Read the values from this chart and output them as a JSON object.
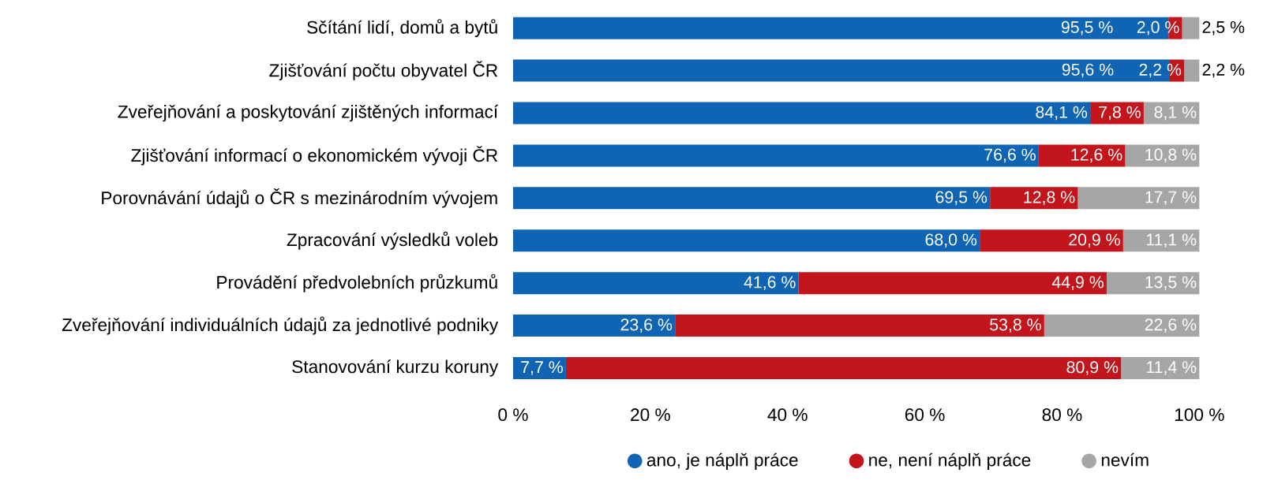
{
  "chart_data": {
    "type": "bar",
    "orientation": "horizontal",
    "stacked": true,
    "categories": [
      "Sčítání lidí, domů a bytů",
      "Zjišťování počtu obyvatel ČR",
      "Zveřejňování a poskytování zjištěných informací",
      "Zjišťování informací o ekonomickém vývoji ČR",
      "Porovnávání údajů o ČR s mezinárodním vývojem",
      "Zpracování výsledků voleb",
      "Provádění předvolebních průzkumů",
      "Zveřejňování individuálních údajů za jednotlivé podniky",
      "Stanovování kurzu koruny"
    ],
    "series": [
      {
        "name": "ano, je náplň práce",
        "color": "#0f64b4",
        "values": [
          95.5,
          95.6,
          84.1,
          76.6,
          69.5,
          68.0,
          41.6,
          23.6,
          7.7
        ],
        "value_labels": [
          "95,5 %",
          "95,6 %",
          "84,1 %",
          "76,6 %",
          "69,5 %",
          "68,0 %",
          "41,6 %",
          "23,6 %",
          "7,7 %"
        ]
      },
      {
        "name": "ne, není náplň práce",
        "color": "#c3161c",
        "values": [
          2.0,
          2.2,
          7.8,
          12.6,
          12.8,
          20.9,
          44.9,
          53.8,
          80.9
        ],
        "value_labels": [
          "2,0 %",
          "2,2 %",
          "7,8 %",
          "12,6 %",
          "12,8 %",
          "20,9 %",
          "44,9 %",
          "53,8 %",
          "80,9 %"
        ]
      },
      {
        "name": "nevím",
        "color": "#a6a6a6",
        "values": [
          2.5,
          2.2,
          8.1,
          10.8,
          17.7,
          11.1,
          13.5,
          22.6,
          11.4
        ],
        "value_labels": [
          "2,5 %",
          "2,2 %",
          "8,1 %",
          "10,8 %",
          "17,7 %",
          "11,1 %",
          "13,5 %",
          "22,6 %",
          "11,4 %"
        ]
      }
    ],
    "xlim": [
      0,
      100
    ],
    "xticks": [
      {
        "value": 0,
        "label": "0 %"
      },
      {
        "value": 20,
        "label": "20 %"
      },
      {
        "value": 40,
        "label": "40 %"
      },
      {
        "value": 60,
        "label": "60 %"
      },
      {
        "value": 80,
        "label": "80 %"
      },
      {
        "value": 100,
        "label": "100 %"
      }
    ],
    "legend": "bottom",
    "marker": "circle"
  }
}
